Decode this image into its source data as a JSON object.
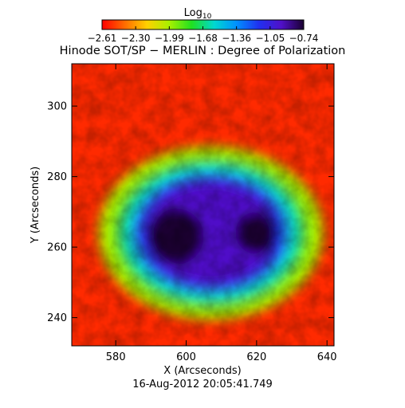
{
  "chart_data": {
    "type": "heatmap",
    "title": "Hinode SOT/SP − MERLIN : Degree of Polarization",
    "timestamp": "16-Aug-2012 20:05:41.749",
    "xlabel": "X (Arcseconds)",
    "ylabel": "Y (Arcseconds)",
    "xlim": [
      567.5,
      642
    ],
    "ylim": [
      232,
      312
    ],
    "x_ticks": [
      580,
      600,
      620,
      640
    ],
    "y_ticks": [
      240,
      260,
      280,
      300
    ],
    "colorbar": {
      "title_base": "Log",
      "title_sub": "10",
      "tick_labels": [
        "−2.61",
        "−2.30",
        "−1.99",
        "−1.68",
        "−1.36",
        "−1.05",
        "−0.74"
      ],
      "range": [
        -2.61,
        -0.74
      ],
      "colormap": [
        "#ff0000",
        "#ff6a00",
        "#ffd000",
        "#a8f000",
        "#20e020",
        "#00d8d0",
        "#0090ff",
        "#2030f0",
        "#5010c8",
        "#1a0030"
      ]
    },
    "features": [
      {
        "name": "umbra-west",
        "cx": 597,
        "cy": 263,
        "rx": 8,
        "ry": 8,
        "value": -0.78
      },
      {
        "name": "umbra-east",
        "cx": 620,
        "cy": 264,
        "rx": 6,
        "ry": 6,
        "value": -0.8
      },
      {
        "name": "penumbra",
        "cx": 607,
        "cy": 264,
        "rx": 22,
        "ry": 17,
        "value": -1.1
      }
    ]
  }
}
